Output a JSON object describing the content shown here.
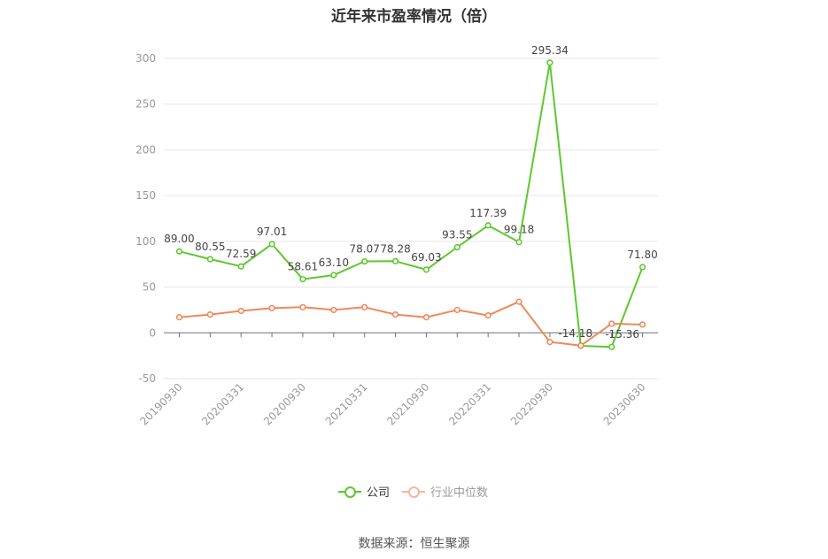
{
  "title": "近年来市盈率情况（倍）",
  "source": "数据来源：恒生聚源",
  "colors": {
    "company": "#5dc82d",
    "industry": "#f0885b",
    "grid": "#e6e6e6",
    "axis": "#999999"
  },
  "legend": {
    "company": "公司",
    "industry": "行业中位数"
  },
  "chart_data": {
    "type": "line",
    "title": "近年来市盈率情况（倍）",
    "x": [
      "20190930",
      "20191231",
      "20200331",
      "20200630",
      "20200930",
      "20201231",
      "20210331",
      "20210630",
      "20210930",
      "20211231",
      "20220331",
      "20220630",
      "20220930",
      "20221231",
      "20230331",
      "20230630"
    ],
    "x_tick_labels": [
      "20190930",
      "20200331",
      "20200930",
      "20210331",
      "20210930",
      "20220331",
      "20220930",
      "20230630"
    ],
    "ylim": [
      -50,
      300
    ],
    "y_ticks": [
      -50,
      0,
      50,
      100,
      150,
      200,
      250,
      300
    ],
    "grid": true,
    "legend_position": "bottom",
    "series": [
      {
        "name": "公司",
        "values": [
          89.0,
          80.55,
          72.59,
          97.01,
          58.61,
          63.1,
          78.07,
          78.28,
          69.03,
          93.55,
          117.39,
          99.18,
          295.34,
          -14.18,
          -15.36,
          71.8
        ],
        "labels": [
          "89.00",
          "80.55",
          "72.59",
          "97.01",
          "58.61",
          "63.10",
          "78.07",
          "78.28",
          "69.03",
          "93.55",
          "117.39",
          "99.18",
          "295.34",
          "-14.18",
          "-15.36",
          "71.80"
        ]
      },
      {
        "name": "行业中位数",
        "values": [
          17,
          20,
          24,
          27,
          28,
          25,
          28,
          20,
          17,
          25,
          19,
          34,
          -10,
          -14,
          10,
          9
        ]
      }
    ]
  }
}
